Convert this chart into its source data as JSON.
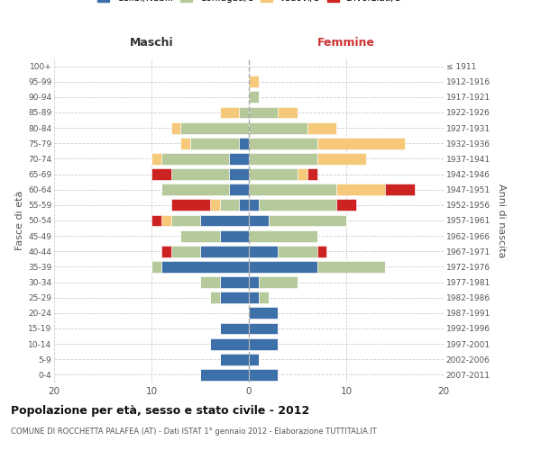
{
  "age_groups": [
    "0-4",
    "5-9",
    "10-14",
    "15-19",
    "20-24",
    "25-29",
    "30-34",
    "35-39",
    "40-44",
    "45-49",
    "50-54",
    "55-59",
    "60-64",
    "65-69",
    "70-74",
    "75-79",
    "80-84",
    "85-89",
    "90-94",
    "95-99",
    "100+"
  ],
  "birth_years": [
    "2007-2011",
    "2002-2006",
    "1997-2001",
    "1992-1996",
    "1987-1991",
    "1982-1986",
    "1977-1981",
    "1972-1976",
    "1967-1971",
    "1962-1966",
    "1957-1961",
    "1952-1956",
    "1947-1951",
    "1942-1946",
    "1937-1941",
    "1932-1936",
    "1927-1931",
    "1922-1926",
    "1917-1921",
    "1912-1916",
    "≤ 1911"
  ],
  "colors": {
    "celibi": "#3d6fa8",
    "coniugati": "#b5c99a",
    "vedovi": "#f5c87a",
    "divorziati": "#cc2222"
  },
  "male": {
    "celibi": [
      5,
      3,
      4,
      3,
      0,
      3,
      3,
      9,
      5,
      3,
      5,
      1,
      2,
      2,
      2,
      1,
      0,
      0,
      0,
      0,
      0
    ],
    "coniugati": [
      0,
      0,
      0,
      0,
      0,
      1,
      2,
      1,
      3,
      4,
      3,
      2,
      7,
      6,
      7,
      5,
      7,
      1,
      0,
      0,
      0
    ],
    "vedovi": [
      0,
      0,
      0,
      0,
      0,
      0,
      0,
      0,
      0,
      0,
      1,
      1,
      0,
      0,
      1,
      1,
      1,
      2,
      0,
      0,
      0
    ],
    "divorziati": [
      0,
      0,
      0,
      0,
      0,
      0,
      0,
      0,
      1,
      0,
      1,
      4,
      0,
      2,
      0,
      0,
      0,
      0,
      0,
      0,
      0
    ]
  },
  "female": {
    "celibi": [
      3,
      1,
      3,
      3,
      3,
      1,
      1,
      7,
      3,
      0,
      2,
      1,
      0,
      0,
      0,
      0,
      0,
      0,
      0,
      0,
      0
    ],
    "coniugati": [
      0,
      0,
      0,
      0,
      0,
      1,
      4,
      7,
      4,
      7,
      8,
      8,
      9,
      5,
      7,
      7,
      6,
      3,
      1,
      0,
      0
    ],
    "vedovi": [
      0,
      0,
      0,
      0,
      0,
      0,
      0,
      0,
      0,
      0,
      0,
      0,
      5,
      1,
      5,
      9,
      3,
      2,
      0,
      1,
      0
    ],
    "divorziati": [
      0,
      0,
      0,
      0,
      0,
      0,
      0,
      0,
      1,
      0,
      0,
      2,
      3,
      1,
      0,
      0,
      0,
      0,
      0,
      0,
      0
    ]
  },
  "title": "Popolazione per età, sesso e stato civile - 2012",
  "subtitle": "COMUNE DI ROCCHETTA PALAFEA (AT) - Dati ISTAT 1° gennaio 2012 - Elaborazione TUTTITALIA.IT",
  "xlabel_left": "Maschi",
  "xlabel_right": "Femmine",
  "ylabel_left": "Fasce di età",
  "ylabel_right": "Anni di nascita",
  "xlim": 20,
  "background_color": "#ffffff",
  "grid_color": "#cccccc"
}
